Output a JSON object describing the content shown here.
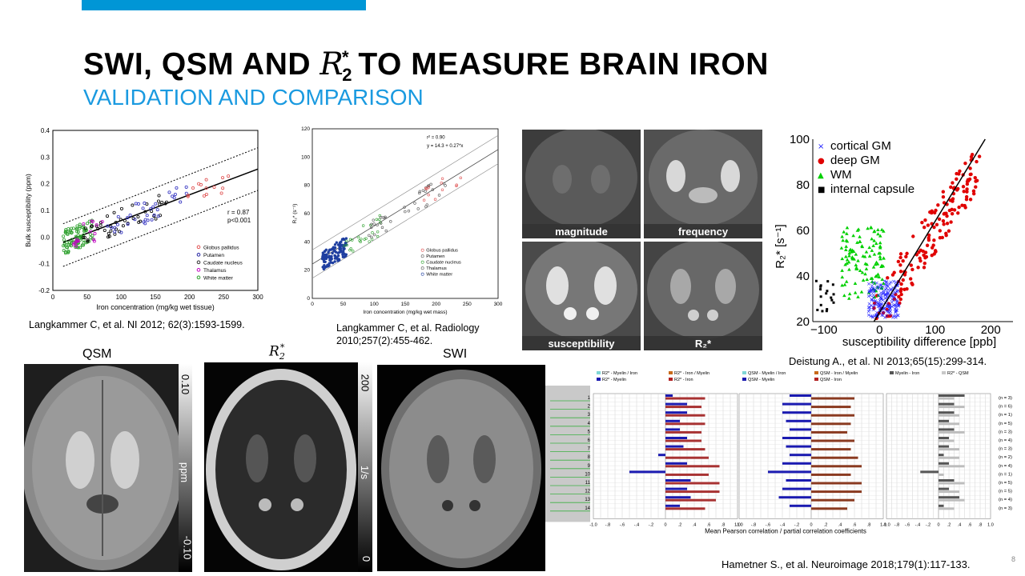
{
  "slide": {
    "title_prefix": "SWI, QSM AND ",
    "title_symbol": "R",
    "title_sub": "2",
    "title_sup": "*",
    "title_suffix": " TO MEASURE BRAIN IRON",
    "subtitle": "VALIDATION AND COMPARISON",
    "page_number": "8"
  },
  "citations": {
    "c1": "Langkammer C, et al. NI 2012; 62(3):1593-1599.",
    "c2_line1": "Langkammer C, et al. Radiology",
    "c2_line2": "2010;257(2):455-462.",
    "c3": "Deistung A., et al. NI 2013;65(15):299-314.",
    "c4": "Hametner S., et al. Neuroimage 2018;179(1):117-133."
  },
  "image_labels": {
    "qsm": "QSM",
    "r2_symbol": "R",
    "r2_sub": "2",
    "r2_sup": "*",
    "swi": "SWI"
  },
  "mri_panels": {
    "magnitude": "magnitude",
    "frequency": "frequency",
    "susceptibility": "susceptibility",
    "r2": "R₂*"
  },
  "colorbars": {
    "qsm_top": "0.10",
    "qsm_unit": "ppm",
    "qsm_bottom": "-0.10",
    "r2_top": "200",
    "r2_unit": "1/s",
    "r2_bottom": "0"
  },
  "colors": {
    "accent": "#0096d6",
    "subtitle": "#1a9ae0"
  },
  "chart_data": [
    {
      "type": "scatter",
      "xlabel": "Iron concentration (mg/kg wet tissue)",
      "ylabel": "Bulk susceptibility (ppm)",
      "xlim": [
        0,
        300
      ],
      "ylim": [
        -0.2,
        0.4
      ],
      "xticks": [
        "0",
        "50",
        "100",
        "150",
        "200",
        "250",
        "300"
      ],
      "yticks": [
        "-0.2",
        "-0.1",
        "0.0",
        "0.1",
        "0.2",
        "0.3",
        "0.4"
      ],
      "annotations": [
        "r = 0.87",
        "p<0.001"
      ],
      "legend": [
        "Globus pallidus",
        "Putamen",
        "Caudate nucleus",
        "Thalamus",
        "White matter"
      ],
      "fit": {
        "x": [
          0,
          300
        ],
        "y": [
          -0.035,
          0.255
        ]
      }
    },
    {
      "type": "scatter",
      "xlabel": "Iron concentration (mg/kg wet mass)",
      "ylabel": "R₂* (s⁻¹)",
      "xlim": [
        0,
        300
      ],
      "ylim": [
        0,
        120
      ],
      "xticks": [
        "0",
        "50",
        "100",
        "150",
        "200",
        "250",
        "300"
      ],
      "yticks": [
        "0",
        "20",
        "40",
        "60",
        "80",
        "100",
        "120"
      ],
      "annotations": [
        "r² = 0.90",
        "y = 14.3 + 0.27*x"
      ],
      "legend": [
        "Globus pallidus",
        "Putamen",
        "Caudate nucleus",
        "Thalamus",
        "White matter"
      ],
      "fit": {
        "x": [
          0,
          300
        ],
        "y": [
          14.3,
          95.3
        ]
      }
    },
    {
      "type": "scatter",
      "xlabel": "susceptibility difference [ppb]",
      "ylabel": "R₂* [s⁻¹]",
      "xlim": [
        -120,
        240
      ],
      "ylim": [
        20,
        100
      ],
      "xticks": [
        "−100",
        "0",
        "100",
        "200"
      ],
      "yticks": [
        "20",
        "40",
        "60",
        "80",
        "100"
      ],
      "legend": [
        "cortical GM",
        "deep GM",
        "WM",
        "internal capsule"
      ],
      "legend_colors": [
        "#1a1aff",
        "#e00000",
        "#00d000",
        "#000000"
      ]
    },
    {
      "type": "bar",
      "xlabel": "Mean Pearson correlation / partial correlation coefficients",
      "rows": [
        "1",
        "2",
        "3",
        "4",
        "5",
        "6",
        "7",
        "8",
        "9",
        "10",
        "11",
        "12",
        "13",
        "14"
      ],
      "xticks": [
        "-1.0",
        "-.8",
        "-.6",
        "-.4",
        "-.2",
        "0",
        ".2",
        ".4",
        ".6",
        ".8",
        "1.0"
      ],
      "panel_legends": [
        [
          "R2* - Myelin / Iron",
          "R2* - Iron / Myelin",
          "R2* - Myelin",
          "R2* - Iron"
        ],
        [
          "QSM - Myelin / Iron",
          "QSM - Iron / Myelin",
          "QSM - Myelin",
          "QSM - Iron"
        ],
        [
          "Myelin - Iron",
          "R2* - QSM"
        ]
      ],
      "n_labels": [
        "(n = 3)",
        "(n = 6)",
        "(n = 1)",
        "(n = 5)",
        "(n = 3)",
        "(n = 4)",
        "(n = 3)",
        "(n = 2)",
        "(n = 4)",
        "(n = 1)",
        "(n = 5)",
        "(n = 5)",
        "(n = 4)",
        "(n = 3)"
      ],
      "series": [
        {
          "name": "R2* - Myelin",
          "values": [
            0.1,
            0.3,
            0.3,
            0.2,
            0.2,
            0.3,
            0.25,
            -0.1,
            0.3,
            -0.5,
            0.35,
            0.3,
            0.35,
            0.2
          ]
        },
        {
          "name": "R2* - Iron",
          "values": [
            0.55,
            0.5,
            0.55,
            0.55,
            0.5,
            0.5,
            0.55,
            0.6,
            0.75,
            0.6,
            0.75,
            0.75,
            0.7,
            0.55
          ]
        },
        {
          "name": "QSM - Myelin",
          "values": [
            -0.3,
            -0.4,
            -0.4,
            -0.35,
            -0.3,
            -0.4,
            -0.35,
            -0.3,
            -0.4,
            -0.6,
            -0.35,
            -0.4,
            -0.45,
            -0.3
          ]
        },
        {
          "name": "QSM - Iron",
          "values": [
            0.6,
            0.55,
            0.6,
            0.55,
            0.5,
            0.6,
            0.55,
            0.65,
            0.7,
            0.55,
            0.7,
            0.7,
            0.6,
            0.5
          ]
        },
        {
          "name": "Myelin - Iron",
          "values": [
            0.5,
            0.3,
            0.3,
            0.2,
            0.3,
            0.2,
            0.2,
            0.1,
            0.2,
            -0.35,
            0.3,
            0.2,
            0.4,
            0.1
          ]
        },
        {
          "name": "R2* - QSM",
          "values": [
            0.3,
            0.5,
            0.4,
            0.4,
            0.5,
            0.3,
            0.4,
            0.4,
            0.5,
            0.1,
            0.5,
            0.4,
            0.5,
            0.3
          ]
        }
      ]
    }
  ]
}
